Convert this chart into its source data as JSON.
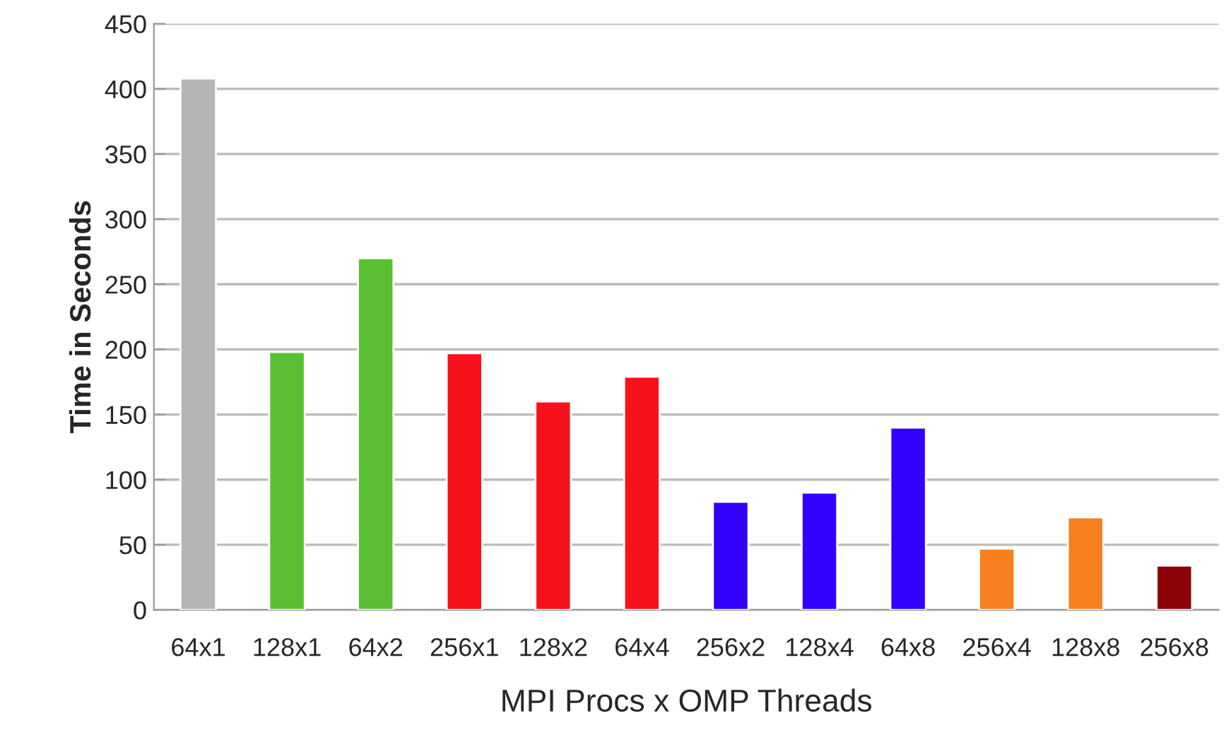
{
  "chart_data": {
    "type": "bar",
    "xlabel": "MPI Procs x OMP Threads",
    "ylabel": "Time in Seconds",
    "categories": [
      "64x1",
      "128x1",
      "64x2",
      "256x1",
      "128x2",
      "64x4",
      "256x2",
      "128x4",
      "64x8",
      "256x4",
      "128x8",
      "256x8"
    ],
    "values": [
      408,
      198,
      270,
      197,
      160,
      179,
      83,
      90,
      140,
      47,
      71,
      34
    ],
    "colors": [
      "#b4b4b4",
      "#5abf33",
      "#5abf33",
      "#f7111b",
      "#f7111b",
      "#f7111b",
      "#3300ff",
      "#3300ff",
      "#3300ff",
      "#f77f1e",
      "#f77f1e",
      "#8c0308"
    ],
    "ylim": [
      0,
      450
    ],
    "yticks": [
      0,
      50,
      100,
      150,
      200,
      250,
      300,
      350,
      400,
      450
    ],
    "grid": "y",
    "legend": false
  }
}
